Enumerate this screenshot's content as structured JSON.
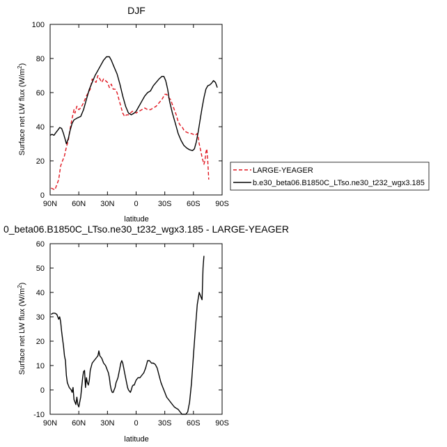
{
  "chart_data": [
    {
      "type": "line",
      "title": "DJF",
      "xlabel": "latitude",
      "ylabel_main": "Surface net LW flux (W/m",
      "ylabel_sup": "2",
      "ylabel_close": ")",
      "x_ticks": [
        {
          "value": 90,
          "label": "90N"
        },
        {
          "value": 60,
          "label": "60N"
        },
        {
          "value": 30,
          "label": "30N"
        },
        {
          "value": 0,
          "label": "0"
        },
        {
          "value": -30,
          "label": "30S"
        },
        {
          "value": -60,
          "label": "60S"
        },
        {
          "value": -90,
          "label": "90S"
        }
      ],
      "xlim": [
        90,
        -90
      ],
      "ylim": [
        0,
        100
      ],
      "y_ticks": [
        0,
        20,
        40,
        60,
        80,
        100
      ],
      "legend_position": "right",
      "series": [
        {
          "name": "LARGE-YEAGER",
          "color": "#e0141e",
          "style": "dashed",
          "points": [
            [
              89,
              4
            ],
            [
              87,
              3.5
            ],
            [
              85,
              3
            ],
            [
              83,
              6
            ],
            [
              81,
              9
            ],
            [
              79,
              17
            ],
            [
              77,
              20
            ],
            [
              75,
              23
            ],
            [
              73,
              28
            ],
            [
              71,
              32
            ],
            [
              69,
              39
            ],
            [
              67,
              45
            ],
            [
              65,
              50
            ],
            [
              64,
              48
            ],
            [
              62,
              52
            ],
            [
              60,
              50
            ],
            [
              58,
              51
            ],
            [
              55,
              54
            ],
            [
              52,
              58
            ],
            [
              50,
              60
            ],
            [
              48,
              62
            ],
            [
              46,
              68
            ],
            [
              44,
              67
            ],
            [
              42,
              66
            ],
            [
              40,
              70
            ],
            [
              38,
              68
            ],
            [
              36,
              66
            ],
            [
              34,
              68
            ],
            [
              32,
              67
            ],
            [
              30,
              66
            ],
            [
              28,
              63
            ],
            [
              26,
              65
            ],
            [
              24,
              62
            ],
            [
              22,
              62
            ],
            [
              20,
              60
            ],
            [
              18,
              56
            ],
            [
              16,
              52
            ],
            [
              14,
              48
            ],
            [
              12,
              46
            ],
            [
              10,
              47
            ],
            [
              8,
              47
            ],
            [
              6,
              48
            ],
            [
              4,
              49
            ],
            [
              2,
              49
            ],
            [
              0,
              48
            ],
            [
              -3,
              49
            ],
            [
              -6,
              50
            ],
            [
              -9,
              51
            ],
            [
              -12,
              50
            ],
            [
              -15,
              50
            ],
            [
              -18,
              51
            ],
            [
              -21,
              52
            ],
            [
              -24,
              54
            ],
            [
              -27,
              56
            ],
            [
              -30,
              59
            ],
            [
              -32,
              59
            ],
            [
              -34,
              57
            ],
            [
              -36,
              56
            ],
            [
              -38,
              53
            ],
            [
              -40,
              50
            ],
            [
              -42,
              47
            ],
            [
              -44,
              43
            ],
            [
              -46,
              41
            ],
            [
              -48,
              40
            ],
            [
              -50,
              38
            ],
            [
              -52,
              37
            ],
            [
              -54,
              36.5
            ],
            [
              -56,
              36
            ],
            [
              -58,
              36
            ],
            [
              -60,
              35.5
            ],
            [
              -62,
              35
            ],
            [
              -64,
              36
            ],
            [
              -65,
              34
            ],
            [
              -66,
              30
            ],
            [
              -68,
              25
            ],
            [
              -69,
              22
            ],
            [
              -70,
              20
            ],
            [
              -71,
              18
            ],
            [
              -72,
              20
            ],
            [
              -73,
              25
            ],
            [
              -74,
              27
            ],
            [
              -75,
              20
            ],
            [
              -76,
              9
            ]
          ]
        },
        {
          "name": "b.e30_beta06.B1850C_LTso.ne30_t232_wgx3.185",
          "color": "#000000",
          "style": "solid",
          "points": [
            [
              90,
              35
            ],
            [
              88,
              35.5
            ],
            [
              86,
              35
            ],
            [
              84,
              36.5
            ],
            [
              82,
              38
            ],
            [
              80,
              39.5
            ],
            [
              78,
              39
            ],
            [
              76,
              36
            ],
            [
              74,
              32
            ],
            [
              73,
              30
            ],
            [
              71,
              33
            ],
            [
              69,
              38
            ],
            [
              67,
              42
            ],
            [
              65,
              44
            ],
            [
              62,
              45
            ],
            [
              58,
              46
            ],
            [
              55,
              50
            ],
            [
              52,
              56
            ],
            [
              49,
              62
            ],
            [
              46,
              66
            ],
            [
              43,
              70
            ],
            [
              40,
              73
            ],
            [
              37,
              76
            ],
            [
              34,
              79
            ],
            [
              31,
              81
            ],
            [
              28,
              81
            ],
            [
              26,
              79
            ],
            [
              23,
              75
            ],
            [
              20,
              71
            ],
            [
              17,
              65
            ],
            [
              14,
              58
            ],
            [
              11,
              52
            ],
            [
              8,
              48
            ],
            [
              5,
              47
            ],
            [
              2,
              48
            ],
            [
              0,
              49
            ],
            [
              -3,
              52
            ],
            [
              -6,
              55
            ],
            [
              -9,
              58
            ],
            [
              -12,
              60
            ],
            [
              -15,
              61
            ],
            [
              -18,
              64
            ],
            [
              -21,
              66
            ],
            [
              -24,
              68
            ],
            [
              -27,
              69.5
            ],
            [
              -29,
              69.5
            ],
            [
              -31,
              67
            ],
            [
              -33,
              62
            ],
            [
              -35,
              55
            ],
            [
              -38,
              48
            ],
            [
              -41,
              42
            ],
            [
              -44,
              36
            ],
            [
              -47,
              32
            ],
            [
              -50,
              29
            ],
            [
              -53,
              27.5
            ],
            [
              -56,
              26.5
            ],
            [
              -59,
              26
            ],
            [
              -61,
              27
            ],
            [
              -63,
              31
            ],
            [
              -65,
              37
            ],
            [
              -67,
              44
            ],
            [
              -69,
              51
            ],
            [
              -71,
              57
            ],
            [
              -73,
              62
            ],
            [
              -75,
              64
            ],
            [
              -77,
              64.5
            ],
            [
              -79,
              65.5
            ],
            [
              -81,
              67
            ],
            [
              -83,
              66
            ],
            [
              -85,
              63
            ]
          ]
        }
      ]
    },
    {
      "type": "line",
      "title": "0_beta06.B1850C_LTso.ne30_t232_wgx3.185 - LARGE-YEAGER",
      "xlabel": "latitude",
      "ylabel_main": "Surface net LW flux (W/m",
      "ylabel_sup": "2",
      "ylabel_close": ")",
      "x_ticks": [
        {
          "value": 90,
          "label": "90N"
        },
        {
          "value": 60,
          "label": "60N"
        },
        {
          "value": 30,
          "label": "30N"
        },
        {
          "value": 0,
          "label": "0"
        },
        {
          "value": -30,
          "label": "30S"
        },
        {
          "value": -60,
          "label": "60S"
        },
        {
          "value": -90,
          "label": "90S"
        }
      ],
      "xlim": [
        90,
        -90
      ],
      "ylim": [
        -10,
        60
      ],
      "y_ticks": [
        -10,
        0,
        10,
        20,
        30,
        40,
        50,
        60
      ],
      "series": [
        {
          "color": "#000000",
          "style": "solid",
          "points": [
            [
              89,
              31
            ],
            [
              87,
              31.5
            ],
            [
              85,
              31.5
            ],
            [
              83,
              31
            ],
            [
              82,
              30
            ],
            [
              81,
              29
            ],
            [
              80,
              30
            ],
            [
              79,
              28
            ],
            [
              78,
              24
            ],
            [
              77,
              21
            ],
            [
              76,
              18
            ],
            [
              75,
              14
            ],
            [
              74,
              12
            ],
            [
              73,
              6
            ],
            [
              72,
              3
            ],
            [
              70,
              1
            ],
            [
              68,
              0
            ],
            [
              67,
              -1
            ],
            [
              66,
              1
            ],
            [
              65,
              -4
            ],
            [
              64,
              -5
            ],
            [
              63,
              -6
            ],
            [
              62,
              -3
            ],
            [
              61,
              -6
            ],
            [
              60,
              -7
            ],
            [
              59,
              -5
            ],
            [
              58,
              -3
            ],
            [
              57,
              1
            ],
            [
              56,
              5
            ],
            [
              55,
              7.5
            ],
            [
              54,
              8
            ],
            [
              53,
              1
            ],
            [
              52,
              5
            ],
            [
              51,
              3
            ],
            [
              50,
              2
            ],
            [
              49,
              4
            ],
            [
              48,
              8
            ],
            [
              46,
              11
            ],
            [
              44,
              12
            ],
            [
              42,
              13
            ],
            [
              40,
              14
            ],
            [
              39,
              16
            ],
            [
              38,
              14
            ],
            [
              36,
              13
            ],
            [
              34,
              11
            ],
            [
              32,
              10
            ],
            [
              31,
              9
            ],
            [
              30,
              8
            ],
            [
              29,
              7
            ],
            [
              28,
              5
            ],
            [
              27,
              2
            ],
            [
              26,
              0
            ],
            [
              25,
              -1
            ],
            [
              24,
              -1
            ],
            [
              23,
              0
            ],
            [
              22,
              1
            ],
            [
              21,
              3
            ],
            [
              20,
              4
            ],
            [
              19,
              5
            ],
            [
              18,
              7
            ],
            [
              17,
              9
            ],
            [
              16,
              11
            ],
            [
              15,
              12
            ],
            [
              14,
              11
            ],
            [
              13,
              9
            ],
            [
              12,
              7
            ],
            [
              11,
              5
            ],
            [
              10,
              3
            ],
            [
              9,
              1
            ],
            [
              8,
              0
            ],
            [
              7,
              -0.5
            ],
            [
              6,
              -1
            ],
            [
              5,
              0
            ],
            [
              4,
              1.5
            ],
            [
              3,
              2
            ],
            [
              2,
              2
            ],
            [
              1,
              3
            ],
            [
              0,
              4
            ],
            [
              -2,
              5
            ],
            [
              -4,
              5
            ],
            [
              -6,
              6
            ],
            [
              -8,
              7
            ],
            [
              -10,
              9
            ],
            [
              -12,
              12
            ],
            [
              -14,
              12
            ],
            [
              -16,
              11
            ],
            [
              -18,
              11
            ],
            [
              -20,
              10.5
            ],
            [
              -22,
              9
            ],
            [
              -24,
              6
            ],
            [
              -26,
              3
            ],
            [
              -28,
              1
            ],
            [
              -30,
              -1
            ],
            [
              -32,
              -3
            ],
            [
              -34,
              -4
            ],
            [
              -36,
              -5
            ],
            [
              -38,
              -6
            ],
            [
              -40,
              -7
            ],
            [
              -42,
              -7.5
            ],
            [
              -44,
              -8
            ],
            [
              -46,
              -9
            ],
            [
              -48,
              -10
            ],
            [
              -50,
              -10
            ],
            [
              -52,
              -10
            ],
            [
              -54,
              -9
            ],
            [
              -56,
              -5
            ],
            [
              -58,
              3
            ],
            [
              -60,
              14
            ],
            [
              -62,
              25
            ],
            [
              -64,
              35
            ],
            [
              -66,
              40
            ],
            [
              -68,
              38
            ],
            [
              -69,
              37
            ],
            [
              -70,
              50
            ],
            [
              -71,
              55
            ]
          ]
        }
      ]
    }
  ],
  "legend": {
    "items": [
      {
        "label": "LARGE-YEAGER",
        "color": "#e0141e",
        "style": "dashed"
      },
      {
        "label": "b.e30_beta06.B1850C_LTso.ne30_t232_wgx3.185",
        "color": "#000000",
        "style": "solid"
      }
    ]
  }
}
